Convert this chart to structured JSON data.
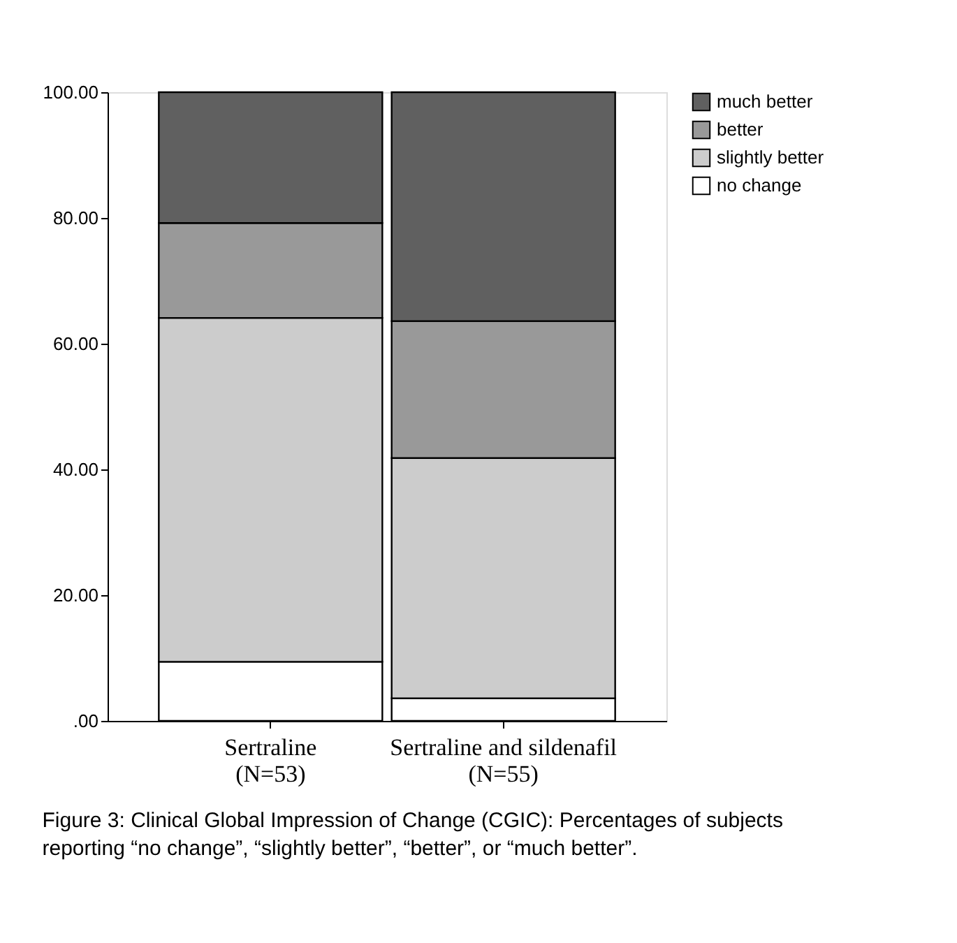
{
  "chart_data": {
    "type": "bar",
    "stacked": true,
    "categories": [
      "Sertraline\n(N=53)",
      "Sertraline and sildenafil\n(N=55)"
    ],
    "series": [
      {
        "name": "no change",
        "color": "#ffffff",
        "values": [
          9.4,
          3.6
        ]
      },
      {
        "name": "slightly better",
        "color": "#cccccc",
        "values": [
          54.7,
          38.2
        ]
      },
      {
        "name": "better",
        "color": "#999999",
        "values": [
          15.1,
          21.8
        ]
      },
      {
        "name": "much better",
        "color": "#606060",
        "values": [
          20.8,
          36.4
        ]
      }
    ],
    "ylim": [
      0,
      100
    ],
    "yticks": [
      {
        "value": 0,
        "label": ".00"
      },
      {
        "value": 20,
        "label": "20.00"
      },
      {
        "value": 40,
        "label": "40.00"
      },
      {
        "value": 60,
        "label": "60.00"
      },
      {
        "value": 80,
        "label": "80.00"
      },
      {
        "value": 100,
        "label": "100.00"
      }
    ],
    "grid": false,
    "legend": "top right",
    "annotations": [
      "Figure 3: Clinical Global Impression of Change (CGIC): Percentages of subjects reporting “no change”, “slightly better”, “better”, or “much better”."
    ]
  }
}
